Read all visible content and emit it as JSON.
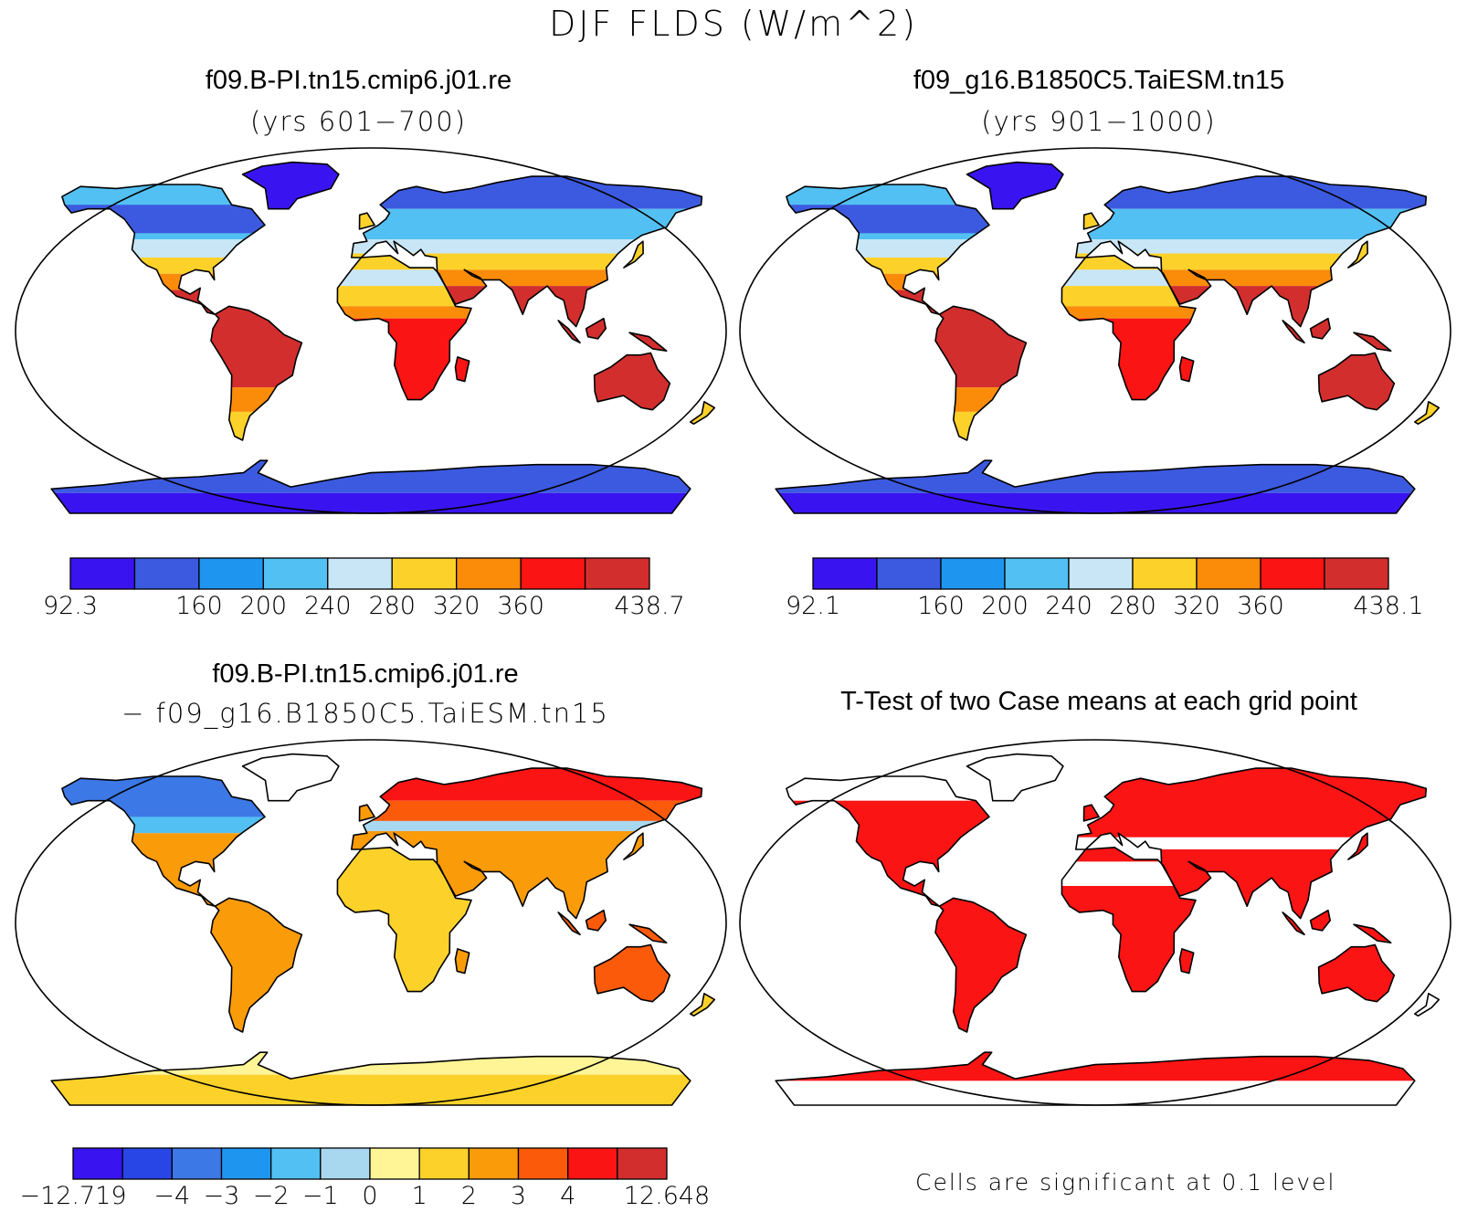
{
  "title": "DJF FLDS (W/m^2)",
  "panels": [
    {
      "id": "p1",
      "title": "f09.B-PI.tn15.cmip6.j01.re",
      "subtitle": "(yrs 601−700)",
      "kind": "field"
    },
    {
      "id": "p2",
      "title": "f09_g16.B1850C5.TaiESM.tn15",
      "subtitle": "(yrs 901−1000)",
      "kind": "field"
    },
    {
      "id": "p3",
      "title": "f09.B-PI.tn15.cmip6.j01.re",
      "subtitle": "− f09_g16.B1850C5.TaiESM.tn15",
      "kind": "difference"
    },
    {
      "id": "p4",
      "title": "T-Test of two Case means at each grid point",
      "subtitle": "",
      "kind": "ttest"
    }
  ],
  "colorbars": [
    {
      "id": "cb1",
      "colors": [
        "#3a14f0",
        "#3c5ae0",
        "#1e96f0",
        "#52c0f2",
        "#c8e6f5",
        "#fcd22a",
        "#fa8c0a",
        "#fa1414",
        "#d22e2e"
      ],
      "labels": [
        "92.3",
        "160",
        "200",
        "240",
        "280",
        "320",
        "360",
        "438.7"
      ],
      "label_positions": [
        0,
        2,
        3,
        4,
        5,
        6,
        7,
        9
      ]
    },
    {
      "id": "cb2",
      "colors": [
        "#3a14f0",
        "#3c5ae0",
        "#1e96f0",
        "#52c0f2",
        "#c8e6f5",
        "#fcd22a",
        "#fa8c0a",
        "#fa1414",
        "#d22e2e"
      ],
      "labels": [
        "92.1",
        "160",
        "200",
        "240",
        "280",
        "320",
        "360",
        "438.1"
      ],
      "label_positions": [
        0,
        2,
        3,
        4,
        5,
        6,
        7,
        9
      ]
    },
    {
      "id": "cb3",
      "colors": [
        "#3a14f0",
        "#2846e6",
        "#3c78e6",
        "#1e96f0",
        "#52c0f2",
        "#a8d8f0",
        "#fff596",
        "#fcd22a",
        "#fa9b0a",
        "#fa5a0a",
        "#fa1414",
        "#d22e2e"
      ],
      "labels": [
        "−12.719",
        "−4",
        "−3",
        "−2",
        "−1",
        "0",
        "1",
        "2",
        "3",
        "4",
        "12.648"
      ],
      "label_positions": [
        0,
        2,
        3,
        4,
        5,
        6,
        7,
        8,
        9,
        10,
        12
      ]
    }
  ],
  "significance_note": "Cells are significant at 0.1 level",
  "colors": {
    "ocean": "#ffffff",
    "coast": "#000000",
    "significant": "#fa1414"
  },
  "map_projection": "robinson"
}
